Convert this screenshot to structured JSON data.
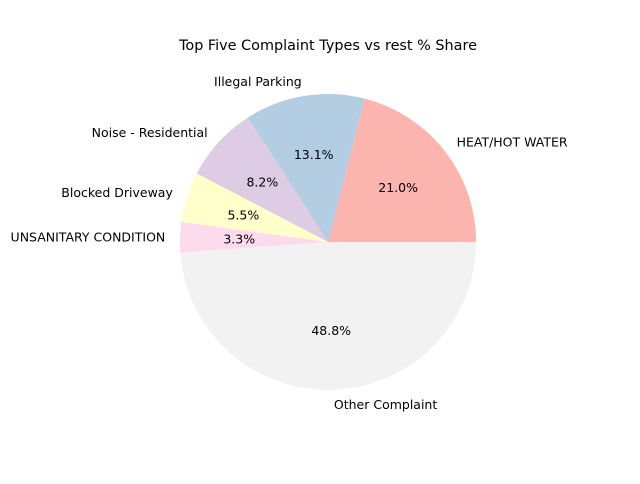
{
  "chart_data": {
    "type": "pie",
    "title": "Top Five Complaint Types vs rest % Share",
    "slices": [
      {
        "label": "HEAT/HOT WATER",
        "value": 21.0,
        "pct_label": "21.0%",
        "color": "#fbb4ae"
      },
      {
        "label": "Illegal Parking",
        "value": 13.1,
        "pct_label": "13.1%",
        "color": "#b3cde3"
      },
      {
        "label": "Noise - Residential",
        "value": 8.2,
        "pct_label": "8.2%",
        "color": "#decbe4"
      },
      {
        "label": "Blocked Driveway",
        "value": 5.5,
        "pct_label": "5.5%",
        "color": "#ffffcc"
      },
      {
        "label": "UNSANITARY CONDITION",
        "value": 3.3,
        "pct_label": "3.3%",
        "color": "#fddaec"
      },
      {
        "label": "Other Complaint",
        "value": 48.8,
        "pct_label": "48.8%",
        "color": "#f2f2f2"
      }
    ],
    "start_angle_deg": 0,
    "direction": "counterclockwise",
    "legend": "none"
  }
}
